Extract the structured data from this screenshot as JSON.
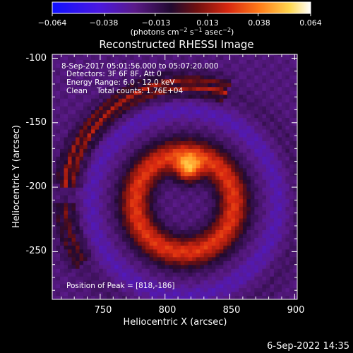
{
  "colorbar": {
    "tick_labels": [
      "−0.064",
      "−0.038",
      "−0.013",
      "0.013",
      "0.038",
      "0.064"
    ],
    "tick_values": [
      -0.064,
      -0.038,
      -0.013,
      0.013,
      0.038,
      0.064
    ],
    "range": [
      -0.064,
      0.064
    ],
    "units_main": "(photons cm",
    "units_exp1": "−2",
    "units_mid": " s",
    "units_exp2": "−1",
    "units_mid2": " asec",
    "units_exp3": "−2",
    "units_end": ")",
    "colors": [
      "#1010ff",
      "#5a18c8",
      "#5a1a78",
      "#2a0c38",
      "#8a1818",
      "#e03010",
      "#ff8a20",
      "#ffe060",
      "#ffffff"
    ]
  },
  "chart_data": {
    "type": "heatmap",
    "title": "Reconstructed RHESSI Image",
    "xlabel": "Heliocentric X (arcsec)",
    "ylabel": "Heliocentric Y (arcsec)",
    "xlim": [
      713,
      902
    ],
    "ylim": [
      -287,
      -97
    ],
    "x_ticks": [
      750,
      800,
      850,
      900
    ],
    "y_ticks": [
      -100,
      -150,
      -200,
      -250
    ],
    "annotations": [
      "8-Sep-2017 05:01:56.000 to 05:07:20.000",
      "Detectors: 3F 6F 8F, Att 0",
      "Energy Range: 6.0 - 12.0 keV",
      "Clean    Total counts: 1.76E+04"
    ],
    "peak_label": "Position of Peak = [818,-186]",
    "peak": [
      818,
      -186
    ],
    "features": {
      "ring_center": [
        815,
        -212
      ],
      "ring_radius": 38,
      "ring_peak_value": 0.064,
      "inner_minimum_value": -0.025,
      "outer_arc_value": 0.02,
      "background_value": -0.02
    }
  },
  "footer": {
    "timestamp": "6-Sep-2022 14:35"
  }
}
